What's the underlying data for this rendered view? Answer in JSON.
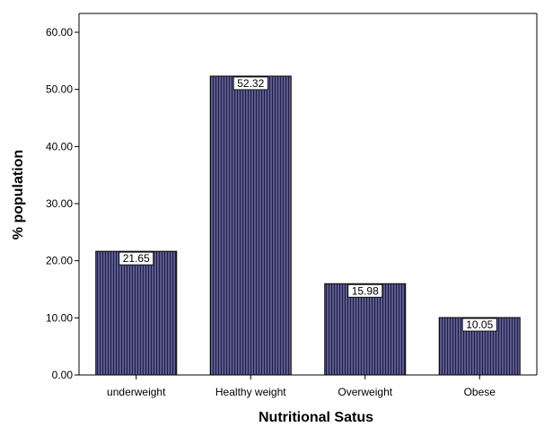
{
  "chart_data": {
    "type": "bar",
    "xlabel": "Nutritional Satus",
    "ylabel": "% population",
    "categories": [
      "underweight",
      "Healthy weight",
      "Overweight",
      "Obese"
    ],
    "values": [
      21.65,
      52.32,
      15.98,
      10.05
    ],
    "data_labels": [
      "21.65",
      "52.32",
      "15.98",
      "10.05"
    ],
    "ylim": [
      0,
      60
    ],
    "yticks": [
      0,
      10,
      20,
      30,
      40,
      50,
      60
    ],
    "ytick_labels": [
      "0.00",
      "10.00",
      "20.00",
      "30.00",
      "40.00",
      "50.00",
      "60.00"
    ],
    "grid": false,
    "legend": "none",
    "bar_fill_color": "#5a5a8c",
    "bar_stripe_color": "#1e1e46"
  }
}
